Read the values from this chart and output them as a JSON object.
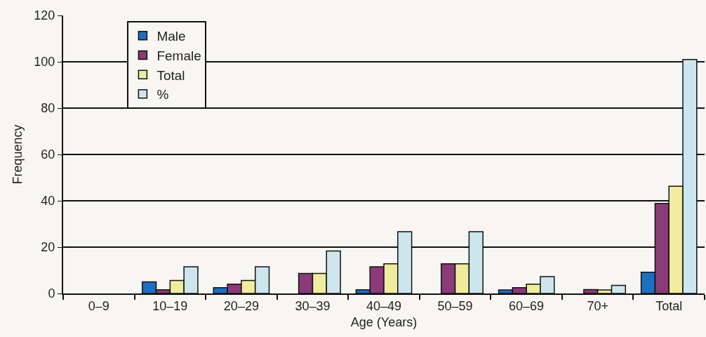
{
  "chart_data": {
    "type": "bar",
    "xlabel": "Age (Years)",
    "ylabel": "Frequency",
    "categories": [
      "0–9",
      "10–19",
      "20–29",
      "30–39",
      "40–49",
      "50–59",
      "60–69",
      "70+",
      "Total"
    ],
    "series": [
      {
        "name": "Male",
        "color": "#1f6fc0",
        "values": [
          null,
          5,
          2.5,
          null,
          1.6,
          null,
          1.5,
          null,
          9.2
        ]
      },
      {
        "name": "Female",
        "color": "#8b3a7a",
        "values": [
          null,
          1.6,
          4,
          8.6,
          11.5,
          12.8,
          2.5,
          1.7,
          38.9
        ]
      },
      {
        "name": "Total",
        "color": "#f0ec9f",
        "values": [
          null,
          5.6,
          5.6,
          8.6,
          12.8,
          12.8,
          4,
          1.5,
          46.3
        ]
      },
      {
        "name": "%",
        "color": "#cde6ee",
        "values": [
          null,
          11.5,
          11.5,
          18.3,
          26.7,
          26.7,
          7.3,
          3.5,
          101
        ]
      }
    ],
    "ylim": [
      0,
      120
    ],
    "yticks": [
      0,
      20,
      40,
      60,
      80,
      100,
      120
    ],
    "grid": "y",
    "legend": "top left"
  }
}
